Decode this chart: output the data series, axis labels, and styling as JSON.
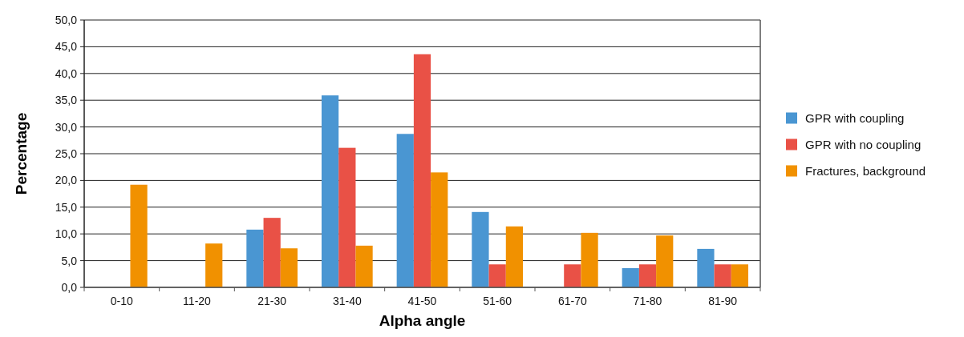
{
  "chart_data": {
    "type": "bar",
    "xlabel": "Alpha angle",
    "ylabel": "Percentage",
    "categories": [
      "0-10",
      "11-20",
      "21-30",
      "31-40",
      "41-50",
      "51-60",
      "61-70",
      "71-80",
      "81-90"
    ],
    "series": [
      {
        "name": "GPR with coupling",
        "color": "#4a96d2",
        "values": [
          0,
          0,
          10.8,
          35.9,
          28.7,
          14.1,
          0,
          3.6,
          7.2
        ]
      },
      {
        "name": "GPR with no coupling",
        "color": "#e95146",
        "values": [
          0,
          0,
          13.0,
          26.1,
          43.6,
          4.3,
          4.3,
          4.3,
          4.3
        ]
      },
      {
        "name": "Fractures, background",
        "color": "#f19100",
        "values": [
          19.2,
          8.2,
          7.3,
          7.8,
          21.5,
          11.4,
          10.2,
          9.7,
          4.3
        ]
      }
    ],
    "ylim": [
      0,
      50
    ],
    "yticks": [
      {
        "value": 0,
        "label": "0,0"
      },
      {
        "value": 5,
        "label": "5,0"
      },
      {
        "value": 10,
        "label": "10,0"
      },
      {
        "value": 15,
        "label": "15,0"
      },
      {
        "value": 20,
        "label": "20,0"
      },
      {
        "value": 25,
        "label": "25,0"
      },
      {
        "value": 30,
        "label": "30,0"
      },
      {
        "value": 35,
        "label": "35,0"
      },
      {
        "value": 40,
        "label": "40,0"
      },
      {
        "value": 45,
        "label": "45,0"
      },
      {
        "value": 50,
        "label": "50,0"
      }
    ],
    "grid": "y",
    "legend": "right"
  }
}
